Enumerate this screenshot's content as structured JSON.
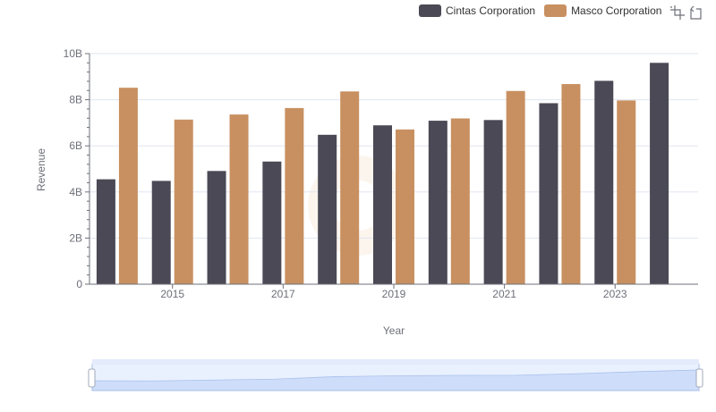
{
  "colors": {
    "series": [
      "#4a4955",
      "#c89060"
    ],
    "axis": "#6e7079",
    "grid": "#e0e6f1",
    "zoom_fill": "#dce6fb",
    "zoom_border": "#a9bde8"
  },
  "toolbox": {
    "icons": [
      "zoom-icon",
      "zoom-reset-icon"
    ]
  },
  "chart_data": {
    "type": "bar",
    "xlabel": "Year",
    "ylabel": "Revenue",
    "ylim": [
      0,
      10000000000
    ],
    "y_ticks": [
      "0",
      "2B",
      "4B",
      "6B",
      "8B",
      "10B"
    ],
    "x_tick_labels": [
      "2015",
      "2017",
      "2019",
      "2021",
      "2023"
    ],
    "categories": [
      "2014",
      "2015",
      "2016",
      "2017",
      "2018",
      "2019",
      "2020",
      "2021",
      "2022",
      "2023",
      "2024"
    ],
    "grid": true,
    "legend_position": "top-right",
    "series": [
      {
        "name": "Cintas Corporation",
        "values": [
          4550000000,
          4480000000,
          4910000000,
          5320000000,
          6480000000,
          6890000000,
          7090000000,
          7120000000,
          7850000000,
          8820000000,
          9600000000
        ]
      },
      {
        "name": "Masco Corporation",
        "values": [
          8520000000,
          7140000000,
          7360000000,
          7640000000,
          8360000000,
          6710000000,
          7190000000,
          8380000000,
          8680000000,
          7970000000,
          null
        ]
      }
    ]
  }
}
